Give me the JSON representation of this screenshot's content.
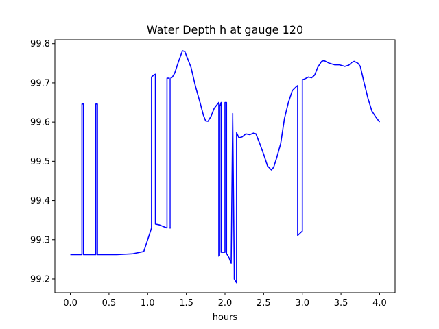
{
  "chart_data": {
    "type": "line",
    "title": "Water Depth h at gauge 120",
    "xlabel": "hours",
    "ylabel": "",
    "xlim": [
      -0.2,
      4.2
    ],
    "ylim": [
      99.165,
      99.81
    ],
    "xticks": [
      0.0,
      0.5,
      1.0,
      1.5,
      2.0,
      2.5,
      3.0,
      3.5,
      4.0
    ],
    "xtick_labels": [
      "0.0",
      "0.5",
      "1.0",
      "1.5",
      "2.0",
      "2.5",
      "3.0",
      "3.5",
      "4.0"
    ],
    "yticks": [
      99.2,
      99.3,
      99.4,
      99.5,
      99.6,
      99.7,
      99.8
    ],
    "ytick_labels": [
      "99.2",
      "99.3",
      "99.4",
      "99.5",
      "99.6",
      "99.7",
      "99.8"
    ],
    "grid": false,
    "series": [
      {
        "name": "",
        "color": "#0000ff",
        "x": [
          0.0,
          0.15,
          0.15,
          0.17,
          0.17,
          0.33,
          0.33,
          0.35,
          0.35,
          0.6,
          0.8,
          0.95,
          1.0,
          1.05,
          1.05,
          1.08,
          1.1,
          1.1,
          1.15,
          1.25,
          1.25,
          1.28,
          1.28,
          1.3,
          1.3,
          1.32,
          1.35,
          1.4,
          1.45,
          1.48,
          1.52,
          1.56,
          1.62,
          1.68,
          1.72,
          1.75,
          1.78,
          1.82,
          1.86,
          1.9,
          1.92,
          1.92,
          1.93,
          1.93,
          1.95,
          1.95,
          1.97,
          1.97,
          2.0,
          2.0,
          2.02,
          2.02,
          2.05,
          2.08,
          2.1,
          2.1,
          2.12,
          2.12,
          2.15,
          2.15,
          2.18,
          2.22,
          2.27,
          2.32,
          2.37,
          2.4,
          2.45,
          2.5,
          2.55,
          2.6,
          2.63,
          2.67,
          2.72,
          2.77,
          2.82,
          2.87,
          2.92,
          2.94,
          2.94,
          3.0,
          3.0,
          3.03,
          3.08,
          3.12,
          3.16,
          3.2,
          3.25,
          3.28,
          3.32,
          3.35,
          3.42,
          3.48,
          3.55,
          3.6,
          3.64,
          3.67,
          3.72,
          3.75,
          3.8,
          3.85,
          3.9,
          3.95,
          4.0
        ],
        "y": [
          99.262,
          99.262,
          99.646,
          99.646,
          99.262,
          99.262,
          99.646,
          99.646,
          99.262,
          99.262,
          99.264,
          99.27,
          99.3,
          99.33,
          99.715,
          99.72,
          99.722,
          99.34,
          99.338,
          99.33,
          99.712,
          99.712,
          99.33,
          99.33,
          99.712,
          99.715,
          99.725,
          99.755,
          99.782,
          99.78,
          99.76,
          99.74,
          99.69,
          99.648,
          99.618,
          99.603,
          99.602,
          99.615,
          99.635,
          99.645,
          99.65,
          99.258,
          99.26,
          99.64,
          99.65,
          99.268,
          99.268,
          99.268,
          99.268,
          99.65,
          99.65,
          99.265,
          99.255,
          99.24,
          99.622,
          99.61,
          99.22,
          99.2,
          99.19,
          99.573,
          99.56,
          99.562,
          99.57,
          99.568,
          99.572,
          99.57,
          99.545,
          99.518,
          99.488,
          99.478,
          99.485,
          99.51,
          99.545,
          99.61,
          99.65,
          99.68,
          99.69,
          99.693,
          99.311,
          99.322,
          99.708,
          99.71,
          99.715,
          99.713,
          99.72,
          99.74,
          99.755,
          99.757,
          99.753,
          99.75,
          99.746,
          99.746,
          99.742,
          99.745,
          99.752,
          99.755,
          99.75,
          99.742,
          99.7,
          99.66,
          99.628,
          99.613,
          99.6
        ]
      }
    ]
  }
}
